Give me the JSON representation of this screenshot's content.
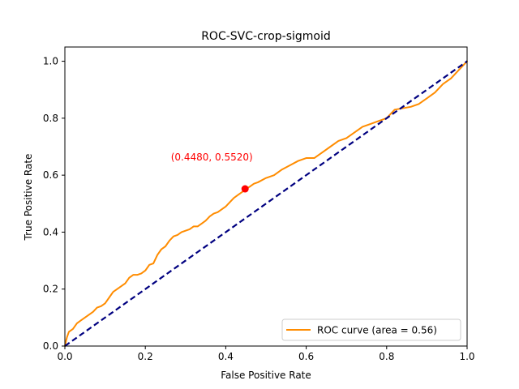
{
  "chart_data": {
    "type": "line",
    "title": "ROC-SVC-crop-sigmoid",
    "xlabel": "False Positive Rate",
    "ylabel": "True Positive Rate",
    "xlim": [
      0.0,
      1.0
    ],
    "ylim": [
      0.0,
      1.05
    ],
    "xticks": [
      0.0,
      0.2,
      0.4,
      0.6,
      0.8,
      1.0
    ],
    "yticks": [
      0.0,
      0.2,
      0.4,
      0.6,
      0.8,
      1.0
    ],
    "tick_labels": [
      "0.0",
      "0.2",
      "0.4",
      "0.6",
      "0.8",
      "1.0"
    ],
    "grid": false,
    "legend": {
      "position": "lower-right",
      "entries": [
        "ROC curve (area = 0.56)"
      ]
    },
    "series": [
      {
        "name": "ROC curve (area = 0.56)",
        "color": "#ff8c00",
        "x": [
          0.0,
          0.005,
          0.01,
          0.02,
          0.03,
          0.04,
          0.05,
          0.06,
          0.07,
          0.08,
          0.09,
          0.1,
          0.11,
          0.12,
          0.13,
          0.14,
          0.15,
          0.16,
          0.17,
          0.18,
          0.19,
          0.2,
          0.21,
          0.22,
          0.23,
          0.24,
          0.25,
          0.26,
          0.27,
          0.28,
          0.29,
          0.3,
          0.31,
          0.32,
          0.33,
          0.34,
          0.35,
          0.36,
          0.37,
          0.38,
          0.39,
          0.4,
          0.41,
          0.42,
          0.43,
          0.44,
          0.45,
          0.46,
          0.47,
          0.48,
          0.5,
          0.52,
          0.54,
          0.56,
          0.58,
          0.6,
          0.62,
          0.64,
          0.66,
          0.68,
          0.7,
          0.72,
          0.74,
          0.76,
          0.78,
          0.8,
          0.82,
          0.84,
          0.86,
          0.88,
          0.9,
          0.92,
          0.94,
          0.96,
          0.98,
          1.0
        ],
        "y": [
          0.0,
          0.03,
          0.05,
          0.06,
          0.08,
          0.09,
          0.1,
          0.11,
          0.12,
          0.135,
          0.14,
          0.15,
          0.17,
          0.19,
          0.2,
          0.21,
          0.22,
          0.24,
          0.25,
          0.25,
          0.255,
          0.265,
          0.285,
          0.29,
          0.32,
          0.34,
          0.35,
          0.37,
          0.385,
          0.39,
          0.4,
          0.405,
          0.41,
          0.42,
          0.42,
          0.43,
          0.44,
          0.455,
          0.465,
          0.47,
          0.48,
          0.49,
          0.505,
          0.52,
          0.53,
          0.54,
          0.552,
          0.56,
          0.57,
          0.575,
          0.59,
          0.6,
          0.62,
          0.635,
          0.65,
          0.66,
          0.66,
          0.68,
          0.7,
          0.72,
          0.73,
          0.75,
          0.77,
          0.78,
          0.79,
          0.8,
          0.83,
          0.835,
          0.84,
          0.85,
          0.87,
          0.89,
          0.92,
          0.94,
          0.97,
          1.0
        ]
      },
      {
        "name": "",
        "color": "#000080",
        "dashed": true,
        "x": [
          0.0,
          1.0
        ],
        "y": [
          0.0,
          1.0
        ]
      }
    ],
    "annotations": [
      {
        "x": 0.448,
        "y": 0.552,
        "text": "(0.4480, 0.5520)",
        "text_color": "#ff0000",
        "marker_color": "#ff0000"
      }
    ]
  }
}
